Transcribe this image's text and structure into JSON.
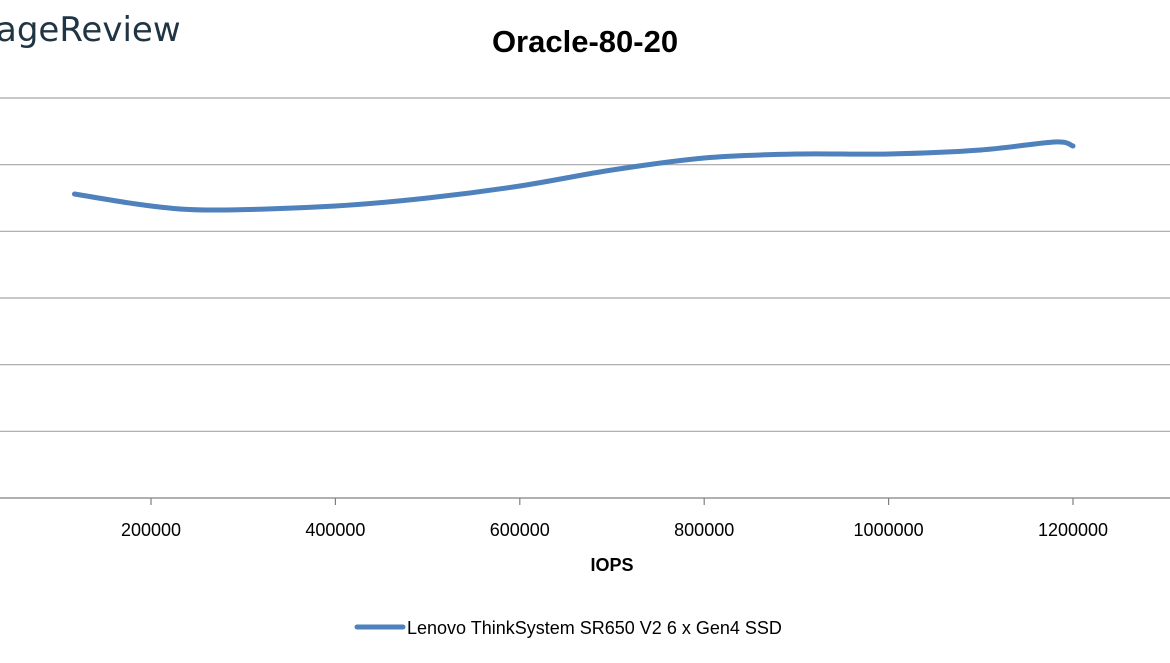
{
  "brand": {
    "logo_text": "ageReview"
  },
  "chart_data": {
    "type": "line",
    "title": "Oracle-80-20",
    "xlabel": "IOPS",
    "ylabel": "",
    "x_ticks": [
      200000,
      400000,
      600000,
      800000,
      1000000,
      1200000
    ],
    "y_gridlines": 7,
    "grid": true,
    "legend": "bottom",
    "colors": {
      "series": "#4f81bd",
      "grid": "#a6a6a6",
      "axis": "#808080"
    },
    "series": [
      {
        "name": "Lenovo ThinkSystem SR650 V2 6 x Gen4 SSD",
        "points": [
          [
            117000,
            0.76
          ],
          [
            200000,
            0.73
          ],
          [
            270000,
            0.72
          ],
          [
            400000,
            0.73
          ],
          [
            500000,
            0.75
          ],
          [
            600000,
            0.78
          ],
          [
            700000,
            0.82
          ],
          [
            800000,
            0.85
          ],
          [
            900000,
            0.86
          ],
          [
            1000000,
            0.86
          ],
          [
            1100000,
            0.87
          ],
          [
            1180000,
            0.89
          ],
          [
            1200000,
            0.88
          ]
        ]
      }
    ]
  }
}
